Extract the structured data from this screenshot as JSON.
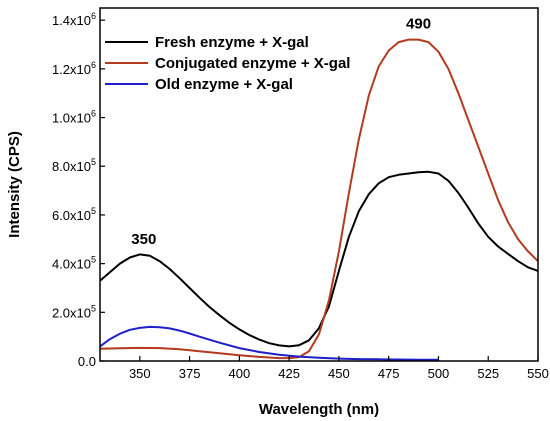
{
  "chart_data": {
    "type": "line",
    "xlabel": "Wavelength (nm)",
    "ylabel": "Intensity (CPS)",
    "xlim": [
      330,
      550
    ],
    "ylim": [
      0,
      1450000
    ],
    "x_ticks": [
      350,
      375,
      400,
      425,
      450,
      475,
      500,
      525,
      550
    ],
    "y_ticks": [
      {
        "value": 0,
        "mantissa": "0.0",
        "exp": ""
      },
      {
        "value": 200000,
        "mantissa": "2.0x10",
        "exp": "5"
      },
      {
        "value": 400000,
        "mantissa": "4.0x10",
        "exp": "5"
      },
      {
        "value": 600000,
        "mantissa": "6.0x10",
        "exp": "5"
      },
      {
        "value": 800000,
        "mantissa": "8.0x10",
        "exp": "5"
      },
      {
        "value": 1000000,
        "mantissa": "1.0x10",
        "exp": "6"
      },
      {
        "value": 1200000,
        "mantissa": "1.2x10",
        "exp": "6"
      },
      {
        "value": 1400000,
        "mantissa": "1.4x10",
        "exp": "6"
      }
    ],
    "legend_position": "top-left",
    "annotations": [
      {
        "text": "350",
        "x": 352,
        "y": 480000
      },
      {
        "text": "490",
        "x": 490,
        "y": 1365000
      }
    ],
    "series": [
      {
        "name": "Fresh enzyme + X-gal",
        "color": "#000000",
        "x": [
          330,
          335,
          340,
          345,
          350,
          355,
          360,
          365,
          370,
          375,
          380,
          385,
          390,
          395,
          400,
          405,
          410,
          415,
          420,
          425,
          430,
          435,
          440,
          445,
          450,
          455,
          460,
          465,
          470,
          475,
          480,
          485,
          490,
          495,
          500,
          505,
          510,
          515,
          520,
          525,
          530,
          535,
          540,
          545,
          550
        ],
        "y": [
          330000,
          365000,
          400000,
          425000,
          438000,
          432000,
          410000,
          378000,
          340000,
          300000,
          260000,
          222000,
          188000,
          157000,
          130000,
          107000,
          88000,
          73000,
          64000,
          60000,
          65000,
          85000,
          135000,
          225000,
          370000,
          510000,
          615000,
          685000,
          730000,
          755000,
          765000,
          770000,
          775000,
          777000,
          770000,
          740000,
          690000,
          630000,
          565000,
          510000,
          470000,
          440000,
          410000,
          385000,
          370000
        ]
      },
      {
        "name": "Conjugated enzyme + X-gal",
        "color": "#b23a1e",
        "x": [
          330,
          340,
          350,
          360,
          370,
          380,
          390,
          400,
          410,
          420,
          425,
          430,
          435,
          440,
          445,
          450,
          455,
          460,
          465,
          470,
          475,
          480,
          485,
          490,
          495,
          500,
          505,
          510,
          515,
          520,
          525,
          530,
          535,
          540,
          545,
          550
        ],
        "y": [
          50000,
          52000,
          54000,
          53000,
          48000,
          40000,
          32000,
          24000,
          17000,
          12000,
          12000,
          16000,
          40000,
          110000,
          250000,
          450000,
          690000,
          910000,
          1090000,
          1210000,
          1275000,
          1310000,
          1320000,
          1320000,
          1310000,
          1270000,
          1200000,
          1100000,
          990000,
          880000,
          770000,
          660000,
          570000,
          500000,
          450000,
          410000
        ]
      },
      {
        "name": "Old enzyme + X-gal",
        "color": "#1f1fc8",
        "x": [
          330,
          335,
          340,
          345,
          350,
          355,
          360,
          365,
          370,
          375,
          380,
          390,
          400,
          410,
          420,
          430,
          440,
          450,
          460,
          470,
          480,
          490,
          500
        ],
        "y": [
          60000,
          90000,
          112000,
          128000,
          136000,
          140000,
          139000,
          134000,
          125000,
          113000,
          100000,
          75000,
          53000,
          37000,
          26000,
          18000,
          13000,
          10000,
          8000,
          7000,
          6000,
          5000,
          5000
        ]
      }
    ]
  }
}
